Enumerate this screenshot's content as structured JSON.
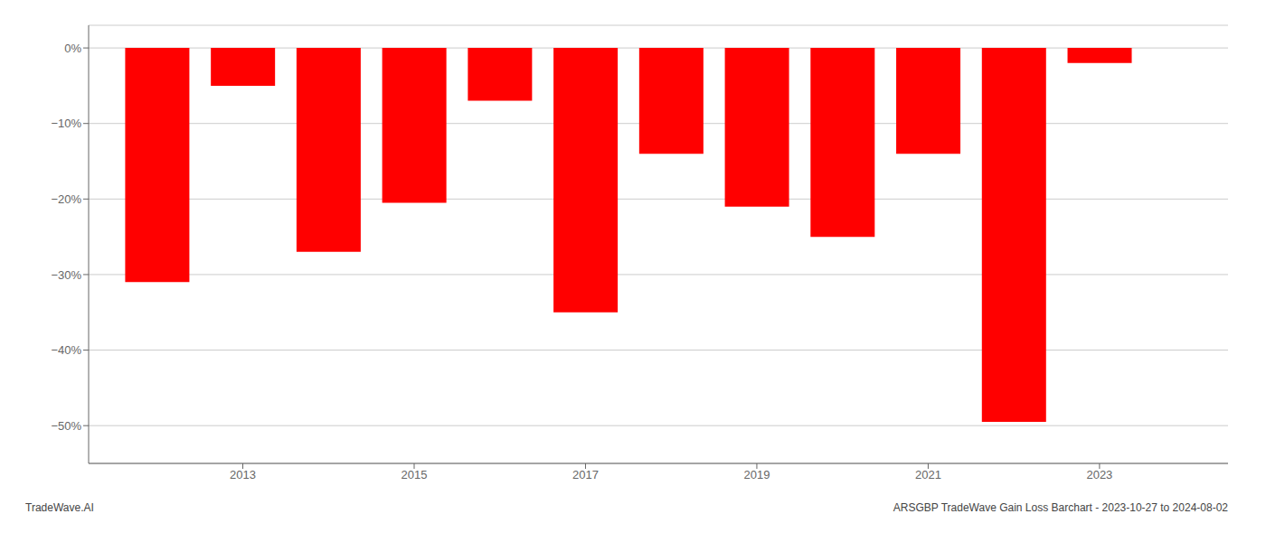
{
  "chart_data": {
    "type": "bar",
    "x": [
      2012,
      2013,
      2014,
      2015,
      2016,
      2017,
      2018,
      2019,
      2020,
      2021,
      2022,
      2023
    ],
    "values": [
      -31.0,
      -5.0,
      -27.0,
      -20.5,
      -7.0,
      -35.0,
      -14.0,
      -21.0,
      -25.0,
      -14.0,
      -49.5,
      -2.0
    ],
    "color": "#ff0000",
    "xlim": [
      2011.2,
      2024.5
    ],
    "xticks": [
      2013,
      2015,
      2017,
      2019,
      2021,
      2023
    ],
    "ylim": [
      -55,
      3
    ],
    "yticks": [
      {
        "value": 0,
        "label": "0%"
      },
      {
        "value": -10,
        "label": "−10%"
      },
      {
        "value": -20,
        "label": "−20%"
      },
      {
        "value": -30,
        "label": "−30%"
      },
      {
        "value": -40,
        "label": "−40%"
      },
      {
        "value": -50,
        "label": "−50%"
      }
    ],
    "grid": true,
    "annotations": [
      "TradeWave.AI",
      "ARSGBP TradeWave Gain Loss Barchart - 2023-10-27 to 2024-08-02"
    ]
  }
}
